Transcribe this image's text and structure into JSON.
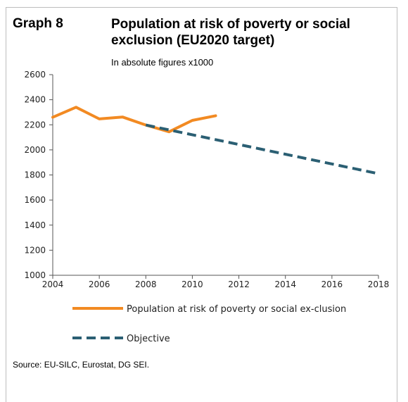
{
  "header": {
    "graph_label": "Graph 8",
    "title": "Population at risk of poverty or social exclusion (EU2020 target)",
    "subtitle": "In absolute figures x1000"
  },
  "source": "Source: EU-SILC, Eurostat, DG SEI.",
  "colors": {
    "population": "#f28a22",
    "objective": "#2b5f73",
    "axis": "#555555"
  },
  "chart_data": {
    "type": "line",
    "title": "Population at risk of poverty or social exclusion (EU2020 target)",
    "subtitle": "In absolute figures x1000",
    "xlabel": "",
    "ylabel": "",
    "xlim": [
      2004,
      2018
    ],
    "ylim": [
      1000,
      2600
    ],
    "x_ticks": [
      "2004",
      "2006",
      "2008",
      "2010",
      "2012",
      "2014",
      "2016",
      "2018"
    ],
    "y_ticks": [
      "1000",
      "1200",
      "1400",
      "1600",
      "1800",
      "2000",
      "2200",
      "2400",
      "2600"
    ],
    "grid": false,
    "legend_position": "bottom",
    "series": [
      {
        "name": "Population at risk of poverty or social ex-clusion",
        "style": "solid",
        "color": "#f28a22",
        "x": [
          2004,
          2005,
          2006,
          2007,
          2008,
          2009,
          2010,
          2011
        ],
        "values": [
          2260,
          2340,
          2247,
          2262,
          2198,
          2144,
          2235,
          2272
        ]
      },
      {
        "name": "Objective",
        "style": "dashed",
        "color": "#2b5f73",
        "x": [
          2008,
          2018
        ],
        "values": [
          2198,
          1810
        ]
      }
    ]
  }
}
